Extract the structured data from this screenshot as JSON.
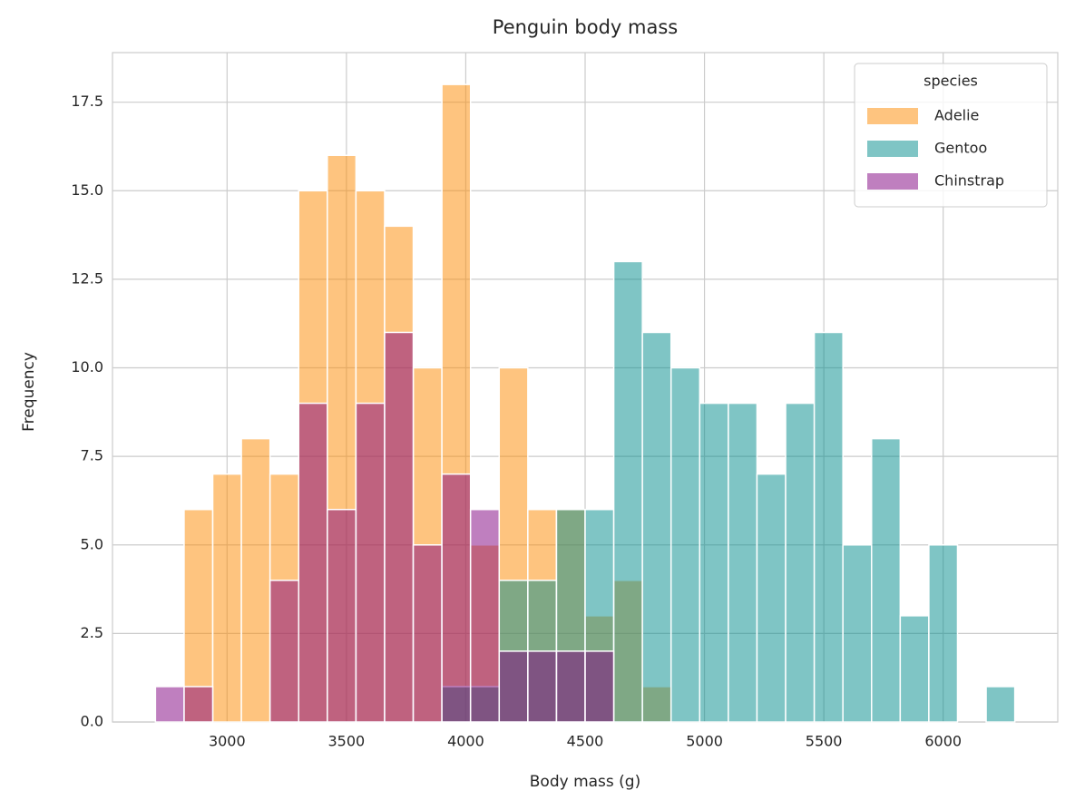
{
  "chart_data": {
    "type": "histogram",
    "title": "Penguin body mass",
    "x_label": "Body mass (g)",
    "y_label": "Frequency",
    "bins": [
      2700,
      2820,
      2940,
      3060,
      3180,
      3300,
      3420,
      3540,
      3660,
      3780,
      3900,
      4020,
      4140,
      4260,
      4380,
      4500,
      4620,
      4740,
      4860,
      4980,
      5100,
      5220,
      5340,
      5460,
      5580,
      5700,
      5820,
      5940,
      6060,
      6180,
      6300
    ],
    "series": [
      {
        "name": "Adelie",
        "color": "#fd8a00",
        "values": [
          0,
          6,
          7,
          8,
          7,
          15,
          16,
          15,
          14,
          10,
          18,
          5,
          10,
          6,
          6,
          3,
          4,
          1,
          0,
          0,
          0,
          0,
          0,
          0,
          0,
          0,
          0,
          0,
          0,
          0
        ]
      },
      {
        "name": "Gentoo",
        "color": "#008b8b",
        "values": [
          0,
          0,
          0,
          0,
          0,
          0,
          0,
          0,
          0,
          0,
          1,
          1,
          4,
          4,
          6,
          6,
          13,
          11,
          10,
          9,
          9,
          7,
          9,
          11,
          5,
          8,
          3,
          5,
          0,
          1
        ]
      },
      {
        "name": "Chinstrap",
        "color": "#800080",
        "values": [
          1,
          1,
          0,
          0,
          4,
          9,
          6,
          9,
          11,
          5,
          7,
          6,
          2,
          2,
          2,
          2,
          0,
          0,
          0,
          0,
          0,
          0,
          0,
          0,
          0,
          0,
          0,
          0,
          0,
          0
        ]
      }
    ],
    "legend_title": "species",
    "legend": "upper right",
    "grid": true,
    "opacity": 0.5,
    "xlim": [
      2520,
      6480
    ],
    "xticks": [
      3000,
      3500,
      4000,
      4500,
      5000,
      5500,
      6000
    ],
    "ylim": [
      0,
      18.9
    ],
    "yticks": [
      {
        "value": 0,
        "label": "0.0"
      },
      2.5,
      {
        "value": 5,
        "label": "5.0"
      },
      7.5,
      {
        "value": 10,
        "label": "10.0"
      },
      12.5,
      {
        "value": 15,
        "label": "15.0"
      },
      17.5
    ]
  }
}
